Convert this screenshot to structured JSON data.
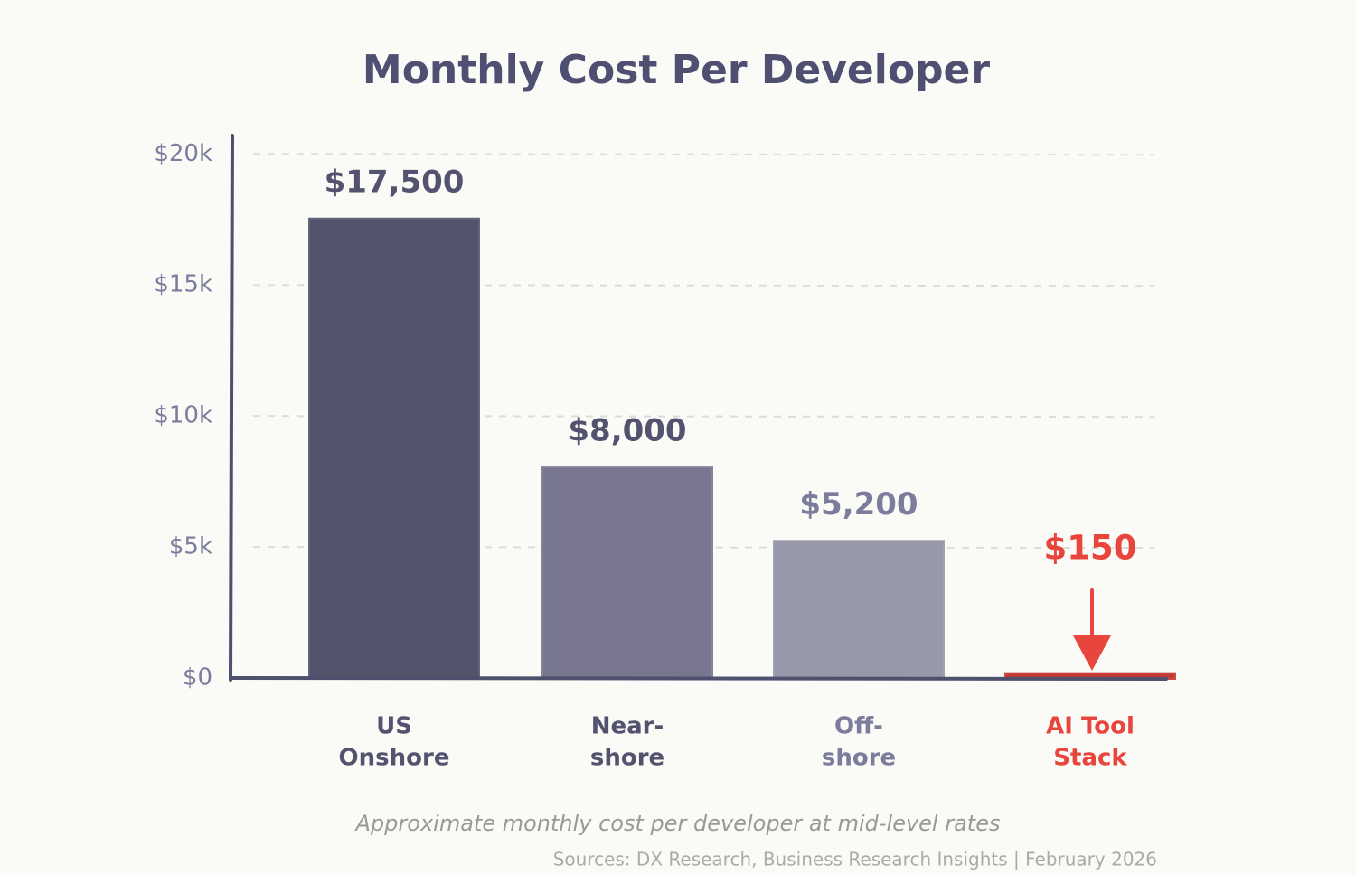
{
  "chart_data": {
    "type": "bar",
    "title": "Monthly Cost Per Developer",
    "subtitle": "Approximate monthly cost per developer at mid-level rates",
    "source": "Sources: DX Research, Business Research Insights | February 2026",
    "categories": [
      [
        "US",
        "Onshore"
      ],
      [
        "Near-",
        "shore"
      ],
      [
        "Off-",
        "shore"
      ],
      [
        "AI Tool",
        "Stack"
      ]
    ],
    "values": [
      17500,
      8000,
      5200,
      150
    ],
    "value_labels": [
      "$17,500",
      "$8,000",
      "$5,200",
      "$150"
    ],
    "colors": [
      "#62627f",
      "#8d8ca8",
      "#b3b3c9",
      "#e8453c"
    ],
    "label_colors": [
      "#53536f",
      "#53536f",
      "#7c7c9c",
      "#e8453c"
    ],
    "ylim": [
      0,
      20700
    ],
    "yticks": [
      {
        "value": 0,
        "label": "$0"
      },
      {
        "value": 5000,
        "label": "$5k"
      },
      {
        "value": 10000,
        "label": "$10k"
      },
      {
        "value": 15000,
        "label": "$15k"
      },
      {
        "value": 20000,
        "label": "$20k"
      }
    ],
    "grid": true
  }
}
